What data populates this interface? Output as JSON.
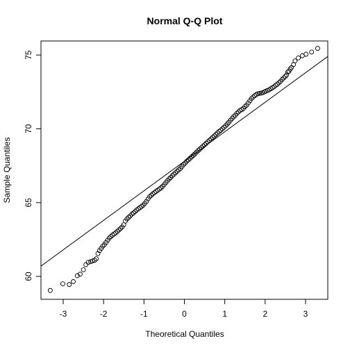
{
  "chart_data": {
    "type": "scatter",
    "title": "Normal Q-Q Plot",
    "xlabel": "Theoretical Quantiles",
    "ylabel": "Sample Quantiles",
    "xlim": [
      -3.55,
      3.55
    ],
    "ylim": [
      58.45,
      75.95
    ],
    "x_ticks": [
      -3,
      -2,
      -1,
      0,
      1,
      2,
      3
    ],
    "y_ticks": [
      60,
      65,
      70,
      75
    ],
    "grid": false,
    "reference_line": {
      "intercept": 67.8,
      "slope": 2.0
    },
    "points": [
      [
        -3.32,
        59.05
      ],
      [
        -3.01,
        59.5
      ],
      [
        -2.85,
        59.45
      ],
      [
        -2.75,
        59.65
      ],
      [
        -2.65,
        60.05
      ],
      [
        -2.58,
        60.15
      ],
      [
        -2.5,
        60.45
      ],
      [
        -2.44,
        60.8
      ],
      [
        -2.38,
        60.95
      ],
      [
        -2.32,
        61.0
      ],
      [
        -2.27,
        61.05
      ],
      [
        -2.22,
        61.1
      ],
      [
        -2.18,
        61.2
      ],
      [
        -2.14,
        61.55
      ],
      [
        -2.1,
        61.75
      ],
      [
        -2.06,
        61.9
      ],
      [
        -2.02,
        62.05
      ],
      [
        -1.98,
        62.15
      ],
      [
        -1.94,
        62.3
      ],
      [
        -1.9,
        62.45
      ],
      [
        -1.86,
        62.6
      ],
      [
        -1.82,
        62.7
      ],
      [
        -1.78,
        62.8
      ],
      [
        -1.74,
        62.88
      ],
      [
        -1.7,
        62.95
      ],
      [
        -1.66,
        63.05
      ],
      [
        -1.62,
        63.15
      ],
      [
        -1.58,
        63.25
      ],
      [
        -1.54,
        63.35
      ],
      [
        -1.5,
        63.5
      ],
      [
        -1.46,
        63.75
      ],
      [
        -1.42,
        63.9
      ],
      [
        -1.38,
        64.0
      ],
      [
        -1.34,
        64.1
      ],
      [
        -1.3,
        64.22
      ],
      [
        -1.26,
        64.3
      ],
      [
        -1.22,
        64.4
      ],
      [
        -1.18,
        64.5
      ],
      [
        -1.14,
        64.58
      ],
      [
        -1.1,
        64.66
      ],
      [
        -1.06,
        64.74
      ],
      [
        -1.02,
        64.83
      ],
      [
        -0.98,
        64.95
      ],
      [
        -0.94,
        65.08
      ],
      [
        -0.9,
        65.25
      ],
      [
        -0.86,
        65.4
      ],
      [
        -0.82,
        65.5
      ],
      [
        -0.78,
        65.6
      ],
      [
        -0.74,
        65.68
      ],
      [
        -0.7,
        65.76
      ],
      [
        -0.66,
        65.84
      ],
      [
        -0.62,
        65.92
      ],
      [
        -0.58,
        66.0
      ],
      [
        -0.54,
        66.1
      ],
      [
        -0.5,
        66.22
      ],
      [
        -0.46,
        66.35
      ],
      [
        -0.42,
        66.48
      ],
      [
        -0.38,
        66.6
      ],
      [
        -0.34,
        66.7
      ],
      [
        -0.3,
        66.82
      ],
      [
        -0.26,
        66.92
      ],
      [
        -0.22,
        67.02
      ],
      [
        -0.18,
        67.12
      ],
      [
        -0.14,
        67.22
      ],
      [
        -0.1,
        67.32
      ],
      [
        -0.06,
        67.45
      ],
      [
        -0.02,
        67.58
      ],
      [
        0.02,
        67.68
      ],
      [
        0.06,
        67.8
      ],
      [
        0.1,
        67.9
      ],
      [
        0.14,
        68.0
      ],
      [
        0.18,
        68.1
      ],
      [
        0.22,
        68.2
      ],
      [
        0.26,
        68.3
      ],
      [
        0.3,
        68.42
      ],
      [
        0.34,
        68.52
      ],
      [
        0.38,
        68.62
      ],
      [
        0.42,
        68.72
      ],
      [
        0.46,
        68.82
      ],
      [
        0.5,
        68.92
      ],
      [
        0.54,
        69.02
      ],
      [
        0.58,
        69.12
      ],
      [
        0.62,
        69.22
      ],
      [
        0.66,
        69.32
      ],
      [
        0.7,
        69.42
      ],
      [
        0.74,
        69.52
      ],
      [
        0.78,
        69.62
      ],
      [
        0.82,
        69.72
      ],
      [
        0.86,
        69.82
      ],
      [
        0.9,
        69.9
      ],
      [
        0.94,
        70.0
      ],
      [
        0.98,
        70.1
      ],
      [
        1.02,
        70.2
      ],
      [
        1.06,
        70.32
      ],
      [
        1.1,
        70.44
      ],
      [
        1.14,
        70.58
      ],
      [
        1.18,
        70.7
      ],
      [
        1.22,
        70.82
      ],
      [
        1.26,
        70.92
      ],
      [
        1.3,
        71.05
      ],
      [
        1.34,
        71.15
      ],
      [
        1.38,
        71.25
      ],
      [
        1.42,
        71.3
      ],
      [
        1.46,
        71.38
      ],
      [
        1.5,
        71.5
      ],
      [
        1.54,
        71.6
      ],
      [
        1.58,
        71.75
      ],
      [
        1.62,
        71.9
      ],
      [
        1.66,
        72.05
      ],
      [
        1.7,
        72.15
      ],
      [
        1.74,
        72.25
      ],
      [
        1.78,
        72.32
      ],
      [
        1.82,
        72.38
      ],
      [
        1.86,
        72.4
      ],
      [
        1.9,
        72.42
      ],
      [
        1.94,
        72.45
      ],
      [
        1.98,
        72.5
      ],
      [
        2.02,
        72.55
      ],
      [
        2.06,
        72.6
      ],
      [
        2.1,
        72.65
      ],
      [
        2.14,
        72.72
      ],
      [
        2.18,
        72.78
      ],
      [
        2.22,
        72.85
      ],
      [
        2.26,
        72.95
      ],
      [
        2.3,
        73.02
      ],
      [
        2.34,
        73.12
      ],
      [
        2.38,
        73.22
      ],
      [
        2.42,
        73.35
      ],
      [
        2.46,
        73.45
      ],
      [
        2.5,
        73.55
      ],
      [
        2.53,
        73.65
      ],
      [
        2.56,
        73.85
      ],
      [
        2.59,
        73.9
      ],
      [
        2.62,
        74.05
      ],
      [
        2.65,
        74.15
      ],
      [
        2.7,
        74.35
      ],
      [
        2.74,
        74.6
      ],
      [
        2.82,
        74.8
      ],
      [
        2.92,
        74.95
      ],
      [
        3.01,
        75.05
      ],
      [
        3.15,
        75.2
      ],
      [
        3.3,
        75.45
      ]
    ]
  }
}
